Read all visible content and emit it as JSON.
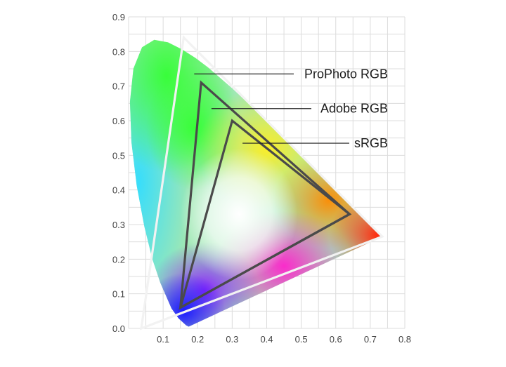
{
  "chart_data": {
    "type": "scatter",
    "title": "",
    "xlabel": "",
    "ylabel": "",
    "xlim": [
      0,
      0.8
    ],
    "ylim": [
      0,
      0.9
    ],
    "grid": true,
    "x_ticks": [
      "0.1",
      "0.2",
      "0.3",
      "0.4",
      "0.5",
      "0.6",
      "0.7",
      "0.8"
    ],
    "y_ticks": [
      "0.0",
      "0.1",
      "0.2",
      "0.3",
      "0.4",
      "0.5",
      "0.6",
      "0.7",
      "0.8",
      "0.9"
    ],
    "spectral_locus": [
      [
        0.1741,
        0.005
      ],
      [
        0.1666,
        0.0089
      ],
      [
        0.144,
        0.0297
      ],
      [
        0.1241,
        0.0578
      ],
      [
        0.0913,
        0.1327
      ],
      [
        0.0687,
        0.2007
      ],
      [
        0.0454,
        0.295
      ],
      [
        0.0235,
        0.4127
      ],
      [
        0.0082,
        0.5384
      ],
      [
        0.0039,
        0.6548
      ],
      [
        0.0139,
        0.7502
      ],
      [
        0.0389,
        0.812
      ],
      [
        0.0743,
        0.8338
      ],
      [
        0.1142,
        0.8262
      ],
      [
        0.1547,
        0.8059
      ],
      [
        0.1929,
        0.7816
      ],
      [
        0.2296,
        0.7543
      ],
      [
        0.3016,
        0.6923
      ],
      [
        0.3731,
        0.6245
      ],
      [
        0.4441,
        0.5547
      ],
      [
        0.5125,
        0.4866
      ],
      [
        0.5752,
        0.4242
      ],
      [
        0.627,
        0.3725
      ],
      [
        0.6658,
        0.334
      ],
      [
        0.6915,
        0.3083
      ],
      [
        0.714,
        0.2859
      ],
      [
        0.7347,
        0.2653
      ]
    ],
    "series": [
      {
        "name": "ProPhoto RGB",
        "points": [
          [
            0.7347,
            0.2653
          ],
          [
            0.1596,
            0.8404
          ],
          [
            0.0366,
            0.0001
          ]
        ],
        "color": "#f2f2f2"
      },
      {
        "name": "Adobe RGB",
        "points": [
          [
            0.64,
            0.33
          ],
          [
            0.21,
            0.71
          ],
          [
            0.15,
            0.06
          ]
        ],
        "color": "#4a4a4a"
      },
      {
        "name": "sRGB",
        "points": [
          [
            0.64,
            0.33
          ],
          [
            0.3,
            0.6
          ],
          [
            0.15,
            0.06
          ]
        ],
        "color": "#4a4a4a"
      }
    ],
    "annotations": [
      {
        "label": "ProPhoto RGB",
        "x": 0.19,
        "y": 0.735,
        "series": 0
      },
      {
        "label": "Adobe RGB",
        "x": 0.24,
        "y": 0.635,
        "series": 1
      },
      {
        "label": "sRGB",
        "x": 0.33,
        "y": 0.535,
        "series": 2
      }
    ]
  }
}
